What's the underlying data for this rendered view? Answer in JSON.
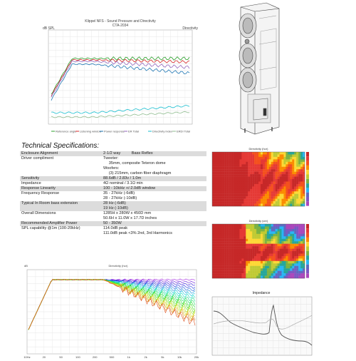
{
  "spl_chart": {
    "title": "Klippel NFS - Sound Pressure and Directivity",
    "subtitle": "CTA-2034",
    "y_left_label": "dB SPL",
    "y_right_label": "Directivity",
    "legend": [
      "Reference angle",
      "Listening window",
      "Power response",
      "ER Total",
      "Directivity index",
      "ERDI Total"
    ],
    "colors": [
      "#2ca02c",
      "#d62728",
      "#1f77b4",
      "#9467bd",
      "#17becf",
      "#8fbc8f"
    ]
  },
  "specs": {
    "title": "Technical Specifications:",
    "rows": [
      {
        "label": "Enclosure Alignment",
        "value": "2-1/2 way          Bass Reflex",
        "shaded": true
      },
      {
        "label": "Driver compliment",
        "value": "Tweeter:\n     35mm, composite Teteron dome\nWoofers:\n     (3) 215mm, carbon fiber diaphragm",
        "shaded": false
      },
      {
        "label": "Sensitivity",
        "value": "88.6dB / 2.83v / 1.0m",
        "shaded": true
      },
      {
        "label": "Impedance",
        "value": "4Ω nominal / 3.1Ω min",
        "shaded": false
      },
      {
        "label": "Response Linearity",
        "value": "100 - 10kHz +/-2.0dB window",
        "shaded": true
      },
      {
        "label": "Frequency Response",
        "value": "35 - 27kHz (-6dB)\n28 - 27kHz (-10dB)",
        "shaded": false
      },
      {
        "label": "Typical In Room bass extension",
        "value": "28 Hz (-6dB)\n19 Hz (-10dB)",
        "shaded": true
      },
      {
        "label": "Overall Dimensions",
        "value": "1285H x 280W x 450D mm\n50.6H x 11.0W x 17.7D inches",
        "shaded": false
      },
      {
        "label": "Recommended Amplifier Power",
        "value": "50 - 350W",
        "shaded": true
      },
      {
        "label": "SPL capability @1m (100-20kHz)",
        "value": "114.0dB peak\n111.0dB peak <3% 2nd, 3rd Harmonics",
        "shaded": false
      }
    ]
  },
  "heatmaps": {
    "horizontal_title": "Directivity (hor)",
    "vertical_title": "Directivity (ver)"
  },
  "dir_chart": {
    "y_label": "dB",
    "title": "Directivity (hor)",
    "x_ticks": [
      "10Hz",
      "20",
      "50",
      "100",
      "200",
      "500",
      "1k",
      "2k",
      "5k",
      "10k",
      "20k"
    ]
  },
  "impedance": {
    "title": "Impedance"
  }
}
